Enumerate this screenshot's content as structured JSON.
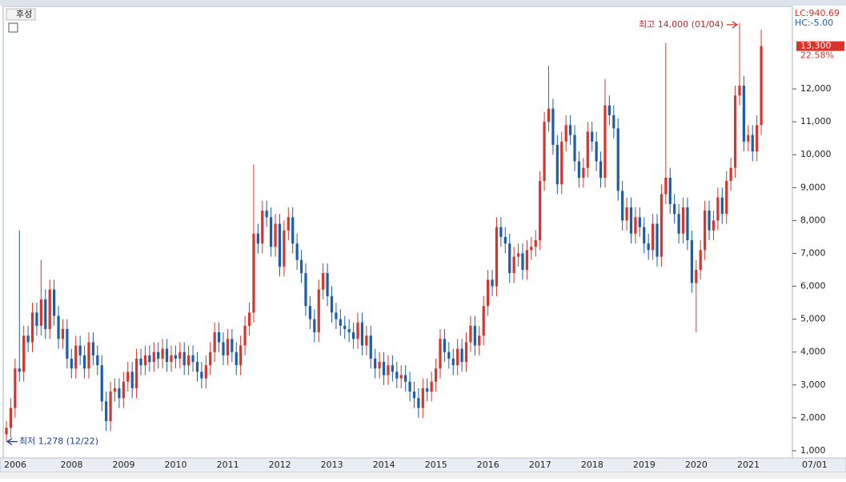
{
  "chart_data": {
    "type": "candlestick",
    "title": "후성",
    "categories": [
      "2006",
      null,
      null,
      null,
      null,
      null,
      null,
      null,
      null,
      null,
      null,
      null,
      null,
      "2008",
      null,
      null,
      null,
      null,
      null,
      null,
      null,
      null,
      null,
      null,
      null,
      "2009",
      null,
      null,
      null,
      null,
      null,
      null,
      null,
      null,
      null,
      null,
      null,
      "2010",
      null,
      null,
      null,
      null,
      null,
      null,
      null,
      null,
      null,
      null,
      null,
      "2011",
      null,
      null,
      null,
      null,
      null,
      null,
      null,
      null,
      null,
      null,
      null,
      "2012",
      null,
      null,
      null,
      null,
      null,
      null,
      null,
      null,
      null,
      null,
      null,
      "2013",
      null,
      null,
      null,
      null,
      null,
      null,
      null,
      null,
      null,
      null,
      null,
      "2014",
      null,
      null,
      null,
      null,
      null,
      null,
      null,
      null,
      null,
      null,
      null,
      "2015",
      null,
      null,
      null,
      null,
      null,
      null,
      null,
      null,
      null,
      null,
      null,
      "2016",
      null,
      null,
      null,
      null,
      null,
      null,
      null,
      null,
      null,
      null,
      null,
      "2017",
      null,
      null,
      null,
      null,
      null,
      null,
      null,
      null,
      null,
      null,
      null,
      "2018",
      null,
      null,
      null,
      null,
      null,
      null,
      null,
      null,
      null,
      null,
      null,
      "2019",
      null,
      null,
      null,
      null,
      null,
      null,
      null,
      null,
      null,
      null,
      null,
      "2020",
      null,
      null,
      null,
      null,
      null,
      null,
      null,
      null,
      null,
      null,
      null,
      "2021",
      null,
      null,
      null,
      null,
      null
    ],
    "open": [
      1500,
      1700,
      2300,
      3500,
      3400,
      4500,
      4300,
      5200,
      4800,
      5600,
      4700,
      5900,
      5100,
      4400,
      4700,
      3800,
      3500,
      4200,
      3900,
      3500,
      4300,
      3900,
      3600,
      2500,
      1900,
      2800,
      2900,
      2600,
      3100,
      3400,
      2900,
      3800,
      3600,
      3900,
      3700,
      4000,
      3800,
      4100,
      3700,
      3900,
      3800,
      4000,
      3600,
      3900,
      3700,
      3400,
      3200,
      3600,
      4000,
      4600,
      4300,
      3900,
      4400,
      4000,
      3600,
      4200,
      4800,
      5200,
      7600,
      7300,
      8300,
      8100,
      7200,
      7900,
      6600,
      7700,
      8100,
      7300,
      6800,
      6400,
      5400,
      5000,
      4600,
      5900,
      6400,
      5700,
      5200,
      5000,
      4800,
      4700,
      4600,
      4400,
      4900,
      4200,
      4500,
      3800,
      3500,
      3700,
      3300,
      3600,
      3400,
      3200,
      3300,
      3100,
      2800,
      2600,
      2300,
      2900,
      2800,
      3100,
      3500,
      4400,
      4000,
      3800,
      3600,
      4100,
      3700,
      4300,
      4800,
      4200,
      4500,
      5400,
      6200,
      6000,
      7800,
      7500,
      7300,
      6400,
      6900,
      7000,
      6500,
      7100,
      7200,
      7400,
      9200,
      11000,
      11400,
      10300,
      9100,
      10400,
      10900,
      10600,
      9800,
      9300,
      9600,
      10700,
      10400,
      9800,
      9300,
      11500,
      11200,
      10800,
      8900,
      8000,
      8400,
      7600,
      8100,
      7800,
      7300,
      7100,
      7900,
      6900,
      8800,
      9300,
      8500,
      8200,
      7600,
      8400,
      7400,
      6100,
      6500,
      7100,
      8300,
      7700,
      8000,
      8700,
      8200,
      9200,
      9600,
      11800,
      12100,
      10400,
      10600,
      10100,
      10900
    ],
    "high": [
      1900,
      2600,
      3800,
      7700,
      4800,
      4800,
      5500,
      5500,
      6800,
      5900,
      6200,
      6200,
      5400,
      5000,
      5000,
      4100,
      4500,
      4500,
      4200,
      4600,
      4600,
      4200,
      3900,
      2800,
      3100,
      3200,
      3200,
      3400,
      3700,
      3700,
      4100,
      4100,
      4200,
      4200,
      4300,
      4300,
      4400,
      4400,
      4200,
      4200,
      4300,
      4300,
      4200,
      4200,
      4000,
      3700,
      3900,
      4300,
      4900,
      4900,
      4600,
      4700,
      4700,
      4300,
      4500,
      5100,
      5500,
      9700,
      7900,
      8600,
      8600,
      8400,
      8200,
      8200,
      8000,
      8400,
      8400,
      7600,
      7100,
      6700,
      5700,
      5300,
      6200,
      6700,
      6700,
      6000,
      5500,
      5300,
      5100,
      5000,
      4900,
      5200,
      5200,
      4800,
      4800,
      4100,
      4000,
      4000,
      3900,
      3900,
      3700,
      3600,
      3600,
      3400,
      3100,
      2900,
      3200,
      3200,
      3400,
      3800,
      4700,
      4700,
      4300,
      4100,
      4400,
      4400,
      4600,
      5100,
      5100,
      4800,
      5700,
      6500,
      6500,
      8100,
      8100,
      7800,
      7600,
      7200,
      7300,
      7300,
      7400,
      7500,
      7700,
      9500,
      11300,
      12700,
      11700,
      10600,
      10700,
      11200,
      11200,
      10900,
      10100,
      9900,
      11000,
      11000,
      10700,
      10100,
      12300,
      11800,
      11500,
      11100,
      9200,
      8700,
      8700,
      8400,
      8400,
      8100,
      7600,
      8200,
      8200,
      9100,
      13400,
      9600,
      8800,
      8500,
      8700,
      8700,
      7700,
      6800,
      7400,
      8600,
      8600,
      8300,
      9000,
      9000,
      9500,
      9900,
      12100,
      14000,
      12400,
      10900,
      10900,
      11200,
      13800
    ],
    "low": [
      1278,
      1400,
      2000,
      3100,
      3100,
      4000,
      4000,
      4500,
      4500,
      4400,
      4400,
      4800,
      4100,
      4100,
      3500,
      3200,
      3200,
      3600,
      3200,
      3200,
      3600,
      3300,
      2200,
      1600,
      1600,
      2500,
      2300,
      2300,
      2800,
      2600,
      2600,
      3300,
      3300,
      3400,
      3400,
      3500,
      3500,
      3400,
      3400,
      3500,
      3500,
      3300,
      3300,
      3400,
      3100,
      2900,
      2900,
      3300,
      3700,
      4000,
      3600,
      3600,
      3700,
      3300,
      3300,
      3900,
      4500,
      4900,
      7000,
      7000,
      7800,
      6900,
      6900,
      6300,
      6300,
      7400,
      7000,
      6500,
      6100,
      5100,
      4700,
      4300,
      4300,
      5600,
      5400,
      4900,
      4700,
      4500,
      4400,
      4300,
      4100,
      4100,
      3900,
      3900,
      3500,
      3200,
      3200,
      3000,
      3000,
      3100,
      2900,
      2900,
      2800,
      2500,
      2300,
      2000,
      2000,
      2500,
      2500,
      2800,
      3200,
      3700,
      3500,
      3300,
      3300,
      3400,
      3400,
      4000,
      3900,
      3900,
      4200,
      5100,
      5700,
      5700,
      7200,
      7000,
      6100,
      6100,
      6600,
      6200,
      6200,
      6800,
      6900,
      7100,
      8900,
      10700,
      10000,
      8800,
      8800,
      10100,
      10300,
      9500,
      9000,
      9000,
      9300,
      10100,
      9500,
      9000,
      9000,
      10900,
      10500,
      8600,
      7700,
      7700,
      7300,
      7300,
      7500,
      7000,
      6800,
      6800,
      6600,
      6600,
      8500,
      8200,
      7900,
      7300,
      7300,
      7100,
      5800,
      4600,
      6200,
      6800,
      7400,
      7400,
      7700,
      7900,
      7900,
      8900,
      9300,
      11500,
      10100,
      10100,
      9800,
      9800,
      10600
    ],
    "close": [
      1700,
      2300,
      3500,
      3400,
      4500,
      4300,
      5200,
      4800,
      5600,
      4700,
      5900,
      5100,
      4400,
      4700,
      3800,
      3500,
      4200,
      3900,
      3500,
      4300,
      3900,
      3600,
      2500,
      1900,
      2800,
      2900,
      2600,
      3100,
      3400,
      2900,
      3800,
      3600,
      3900,
      3700,
      4000,
      3800,
      4100,
      3700,
      3900,
      3800,
      4000,
      3600,
      3900,
      3700,
      3400,
      3200,
      3600,
      4000,
      4600,
      4300,
      3900,
      4400,
      4000,
      3600,
      4200,
      4800,
      5200,
      7600,
      7300,
      8300,
      8100,
      7200,
      7900,
      6600,
      7700,
      8100,
      7300,
      6800,
      6400,
      5400,
      5000,
      4600,
      5900,
      6400,
      5700,
      5200,
      5000,
      4800,
      4700,
      4600,
      4400,
      4900,
      4200,
      4500,
      3800,
      3500,
      3700,
      3300,
      3600,
      3400,
      3200,
      3300,
      3100,
      2800,
      2600,
      2300,
      2900,
      2800,
      3100,
      3500,
      4400,
      4000,
      3800,
      3600,
      4100,
      3700,
      4300,
      4800,
      4200,
      4500,
      5400,
      6200,
      6000,
      7800,
      7500,
      7300,
      6400,
      6900,
      7000,
      6500,
      7100,
      7200,
      7400,
      9200,
      11000,
      11400,
      10300,
      9100,
      10400,
      10900,
      10600,
      9800,
      9300,
      9600,
      10700,
      10400,
      9800,
      9300,
      11500,
      11200,
      10800,
      8900,
      8000,
      8400,
      7600,
      8100,
      7800,
      7300,
      7100,
      7900,
      6900,
      8800,
      9300,
      8500,
      8200,
      7600,
      8400,
      7400,
      6100,
      6500,
      7100,
      8300,
      7700,
      8000,
      8700,
      8200,
      9200,
      9600,
      11800,
      12100,
      10400,
      10600,
      10100,
      10900,
      13300
    ],
    "up_color": "#d6342c",
    "down_color": "#1c5da6",
    "ylim": [
      780,
      14460
    ],
    "yticks": [
      {
        "value": 1000,
        "label": "1,000"
      },
      {
        "value": 2000,
        "label": "2,000"
      },
      {
        "value": 3000,
        "label": "3,000"
      },
      {
        "value": 4000,
        "label": "4,000"
      },
      {
        "value": 5000,
        "label": "5,000"
      },
      {
        "value": 6000,
        "label": "6,000"
      },
      {
        "value": 7000,
        "label": "7,000"
      },
      {
        "value": 8000,
        "label": "8,000"
      },
      {
        "value": 9000,
        "label": "9,000"
      },
      {
        "value": 10000,
        "label": "10,000"
      },
      {
        "value": 11000,
        "label": "11,000"
      },
      {
        "value": 12000,
        "label": "12,000"
      }
    ],
    "x_end_label": "07/01",
    "high_label": "최고 14,000 (01/04)",
    "low_label": "최저 1,278 (12/22)",
    "indicators": [
      "LC:940.69",
      "HC:-5.00"
    ],
    "last_price_label": "13,300",
    "change_label": "22.58%"
  }
}
